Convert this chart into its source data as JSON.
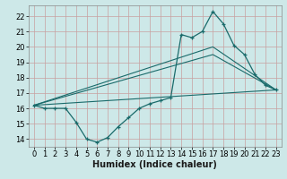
{
  "title": "",
  "xlabel": "Humidex (Indice chaleur)",
  "background_color": "#cde8e8",
  "grid_color": "#b0cccc",
  "line_color": "#1a6b6b",
  "xlim": [
    -0.5,
    23.5
  ],
  "ylim": [
    13.5,
    22.7
  ],
  "x_ticks": [
    0,
    1,
    2,
    3,
    4,
    5,
    6,
    7,
    8,
    9,
    10,
    11,
    12,
    13,
    14,
    15,
    16,
    17,
    18,
    19,
    20,
    21,
    22,
    23
  ],
  "y_ticks": [
    14,
    15,
    16,
    17,
    18,
    19,
    20,
    21,
    22
  ],
  "line1_x": [
    0,
    1,
    2,
    3,
    4,
    5,
    6,
    7,
    8,
    9,
    10,
    11,
    12,
    13,
    14,
    15,
    16,
    17,
    18,
    19,
    20,
    21,
    22,
    23
  ],
  "line1_y": [
    16.2,
    16.0,
    16.0,
    16.0,
    15.1,
    14.0,
    13.8,
    14.1,
    14.8,
    15.4,
    16.0,
    16.3,
    16.5,
    16.7,
    20.8,
    20.6,
    21.0,
    22.3,
    21.5,
    20.1,
    19.5,
    18.2,
    17.5,
    17.2
  ],
  "line2_x": [
    0,
    23
  ],
  "line2_y": [
    16.2,
    17.2
  ],
  "line3_x": [
    0,
    17,
    23
  ],
  "line3_y": [
    16.2,
    19.5,
    17.2
  ],
  "line4_x": [
    0,
    17,
    23
  ],
  "line4_y": [
    16.2,
    20.0,
    17.2
  ],
  "tick_fontsize": 6,
  "xlabel_fontsize": 7
}
